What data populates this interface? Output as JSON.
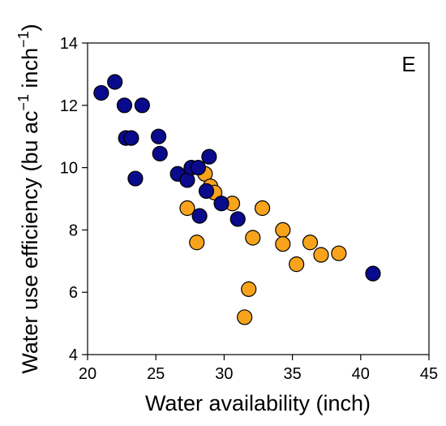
{
  "chart_data": {
    "type": "scatter",
    "panel_label": "E",
    "xlabel": "Water availability (inch)",
    "ylabel": {
      "base": "Water use efficiency (bu ac",
      "sup1": "−1",
      "mid": " inch",
      "sup2": "−1",
      "end": ")"
    },
    "xlim": [
      20,
      45
    ],
    "ylim": [
      4,
      14
    ],
    "xticks": [
      "20",
      "25",
      "30",
      "35",
      "40",
      "45"
    ],
    "yticks": [
      "4",
      "6",
      "8",
      "10",
      "12",
      "14"
    ],
    "grid": false,
    "legend": "none",
    "series": [
      {
        "color": "#f7a31c",
        "points": [
          [
            27.3,
            8.7
          ],
          [
            28.0,
            7.6
          ],
          [
            28.6,
            9.8
          ],
          [
            29.0,
            9.4
          ],
          [
            29.3,
            9.2
          ],
          [
            30.6,
            8.85
          ],
          [
            31.5,
            5.2
          ],
          [
            31.8,
            6.1
          ],
          [
            32.1,
            7.75
          ],
          [
            32.8,
            8.7
          ],
          [
            34.3,
            8.0
          ],
          [
            34.3,
            7.55
          ],
          [
            35.3,
            6.9
          ],
          [
            36.3,
            7.6
          ],
          [
            37.1,
            7.2
          ],
          [
            38.4,
            7.25
          ]
        ]
      },
      {
        "color": "#0a0a8c",
        "points": [
          [
            21.0,
            12.4
          ],
          [
            22.0,
            12.75
          ],
          [
            22.7,
            12.0
          ],
          [
            22.8,
            10.95
          ],
          [
            23.2,
            10.95
          ],
          [
            23.5,
            9.65
          ],
          [
            24.0,
            12.0
          ],
          [
            25.2,
            11.0
          ],
          [
            25.3,
            10.45
          ],
          [
            26.6,
            9.8
          ],
          [
            27.3,
            9.6
          ],
          [
            27.6,
            10.0
          ],
          [
            28.1,
            10.0
          ],
          [
            28.2,
            8.45
          ],
          [
            28.7,
            9.25
          ],
          [
            28.9,
            10.35
          ],
          [
            29.8,
            8.85
          ],
          [
            31.0,
            8.35
          ],
          [
            40.9,
            6.6
          ]
        ]
      }
    ]
  }
}
